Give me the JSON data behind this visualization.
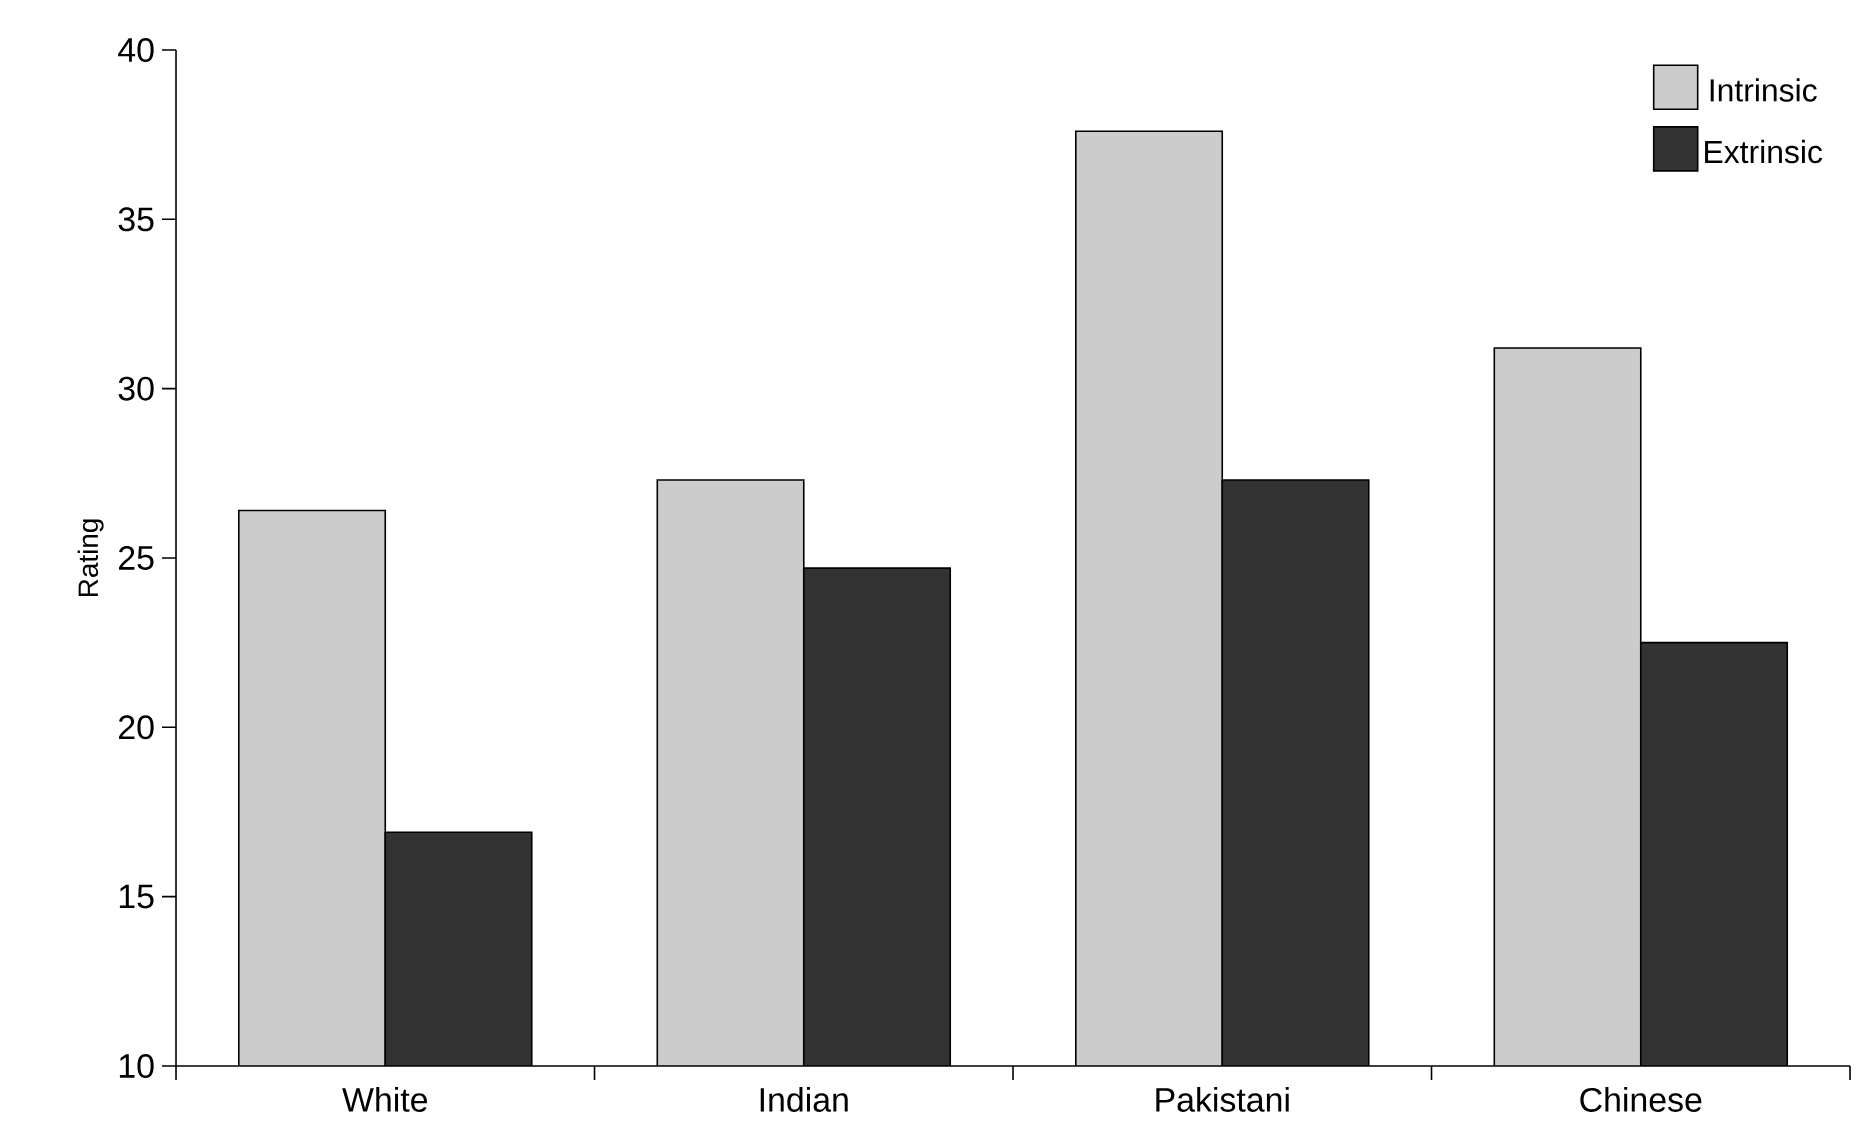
{
  "chart_data": {
    "type": "bar",
    "ylabel": "Rating",
    "categories": [
      "White",
      "Indian",
      "Pakistani",
      "Chinese"
    ],
    "series": [
      {
        "name": "Intrinsic",
        "color": "#cccccc",
        "values": [
          26.4,
          27.3,
          37.6,
          31.2
        ]
      },
      {
        "name": "Extrinsic",
        "color": "#333333",
        "values": [
          16.9,
          24.7,
          27.3,
          22.5
        ]
      }
    ],
    "ylim": [
      10,
      40
    ],
    "yticks": [
      10,
      15,
      20,
      25,
      30,
      35,
      40
    ],
    "grid": false,
    "legend": "top right"
  }
}
